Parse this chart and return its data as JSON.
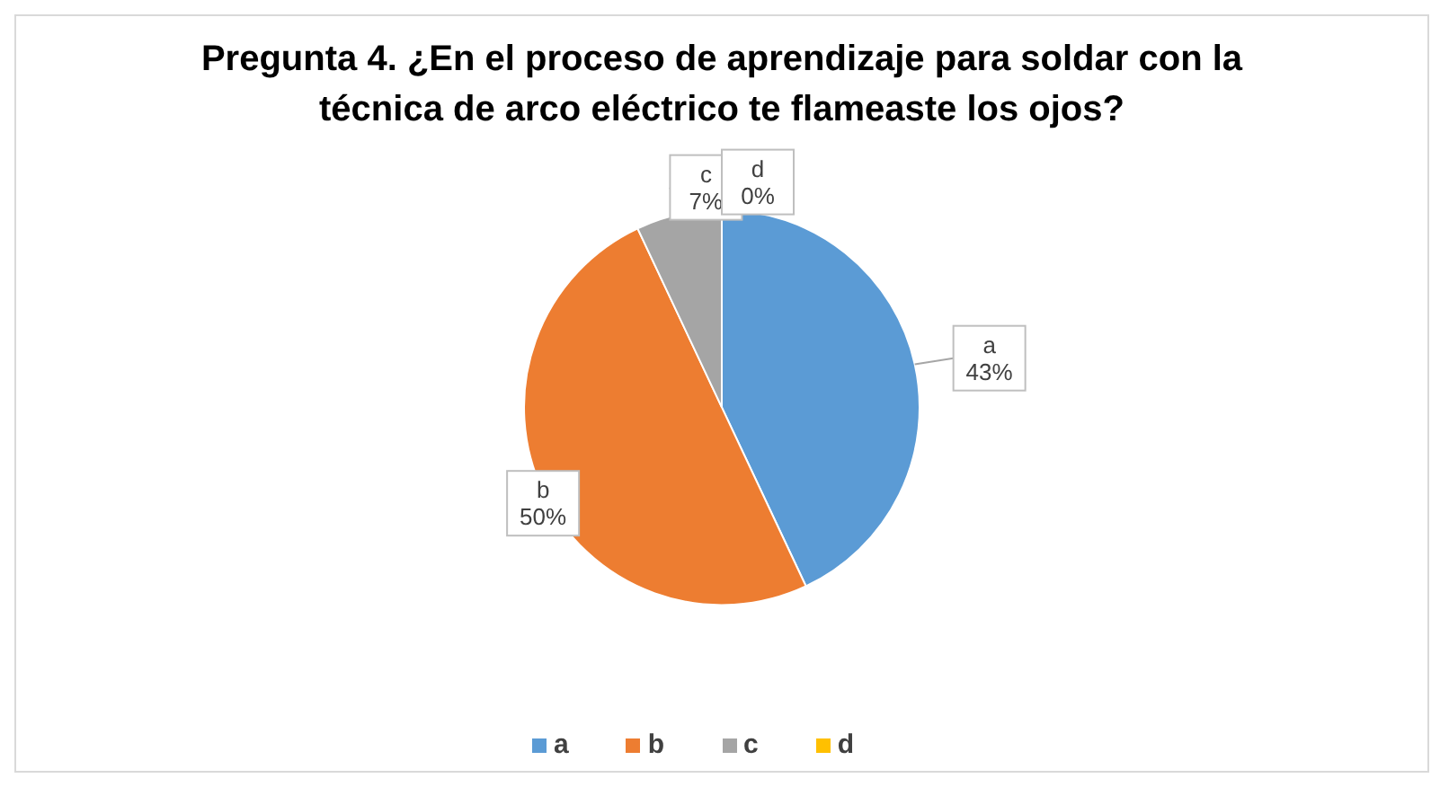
{
  "chart_data": {
    "type": "pie",
    "title": "Pregunta 4. ¿En el proceso de aprendizaje para soldar con la técnica de arco eléctrico te flameaste los ojos?",
    "categories": [
      "a",
      "b",
      "c",
      "d"
    ],
    "values": [
      43,
      50,
      7,
      0
    ],
    "colors": [
      "#5b9bd5",
      "#ed7d31",
      "#a5a5a5",
      "#ffc000"
    ],
    "value_labels": [
      "43%",
      "50%",
      "7%",
      "0%"
    ],
    "legend": "bottom"
  }
}
